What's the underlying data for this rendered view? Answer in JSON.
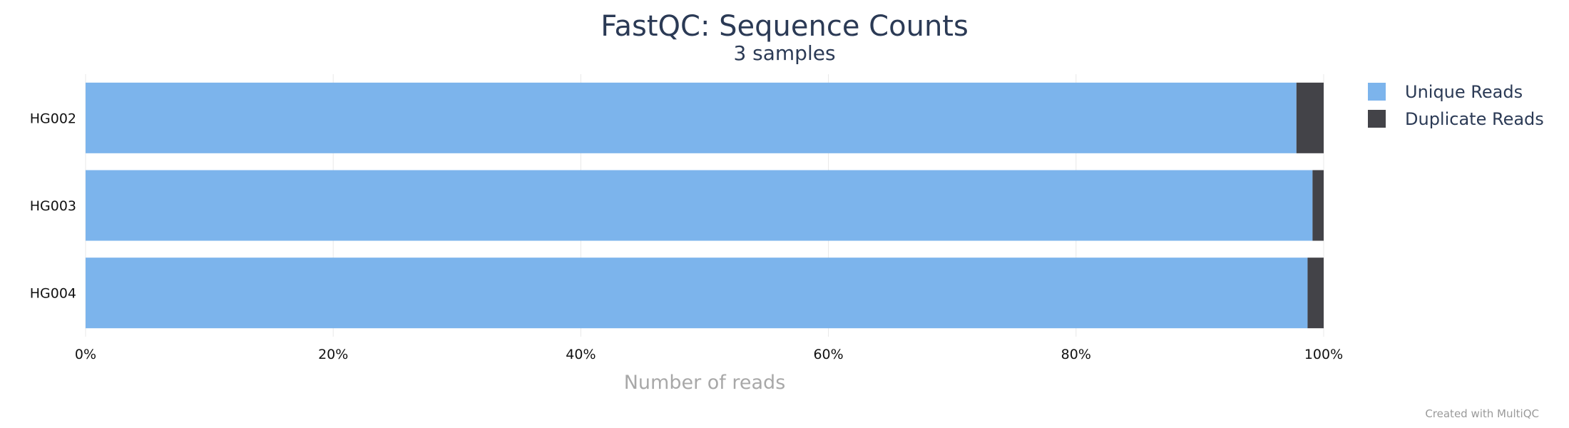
{
  "chart_data": {
    "type": "bar",
    "orientation": "horizontal",
    "stacked": true,
    "normalized_percent": true,
    "title": "FastQC: Sequence Counts",
    "subtitle": "3 samples",
    "xlabel": "Number of reads",
    "ylabel": "",
    "xlim": [
      0,
      100
    ],
    "x_ticks": [
      "0%",
      "20%",
      "40%",
      "60%",
      "80%",
      "100%"
    ],
    "categories": [
      "HG002",
      "HG003",
      "HG004"
    ],
    "series": [
      {
        "name": "Unique Reads",
        "color": "#7cb4ec",
        "values": [
          97.8,
          99.1,
          98.7
        ]
      },
      {
        "name": "Duplicate Reads",
        "color": "#434348",
        "values": [
          2.2,
          0.9,
          1.3
        ]
      }
    ],
    "grid": true,
    "legend_position": "top-right"
  },
  "credit": "Created with MultiQC"
}
